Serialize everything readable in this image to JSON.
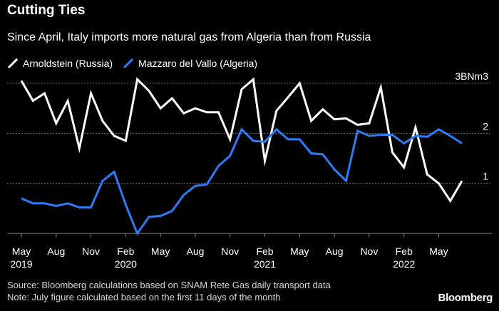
{
  "colors": {
    "russia": "#ffffff",
    "algeria": "#2f7bf5",
    "grid": "#6a6a6a",
    "axis": "#8a8a8a",
    "text": "#ffffff",
    "footnote": "#d7d7d7"
  },
  "chart_data": {
    "type": "line",
    "title": "Cutting Ties",
    "subtitle": "Since April, Italy imports more natural gas from Algeria than from Russia",
    "y_unit_label": "3BNm3",
    "ylim": [
      0,
      3.1
    ],
    "yticks": [
      {
        "value": 1,
        "label": "1"
      },
      {
        "value": 2,
        "label": "2"
      },
      {
        "value": 3,
        "label": "3BNm3"
      }
    ],
    "grid": true,
    "legend_position": "top-left",
    "x_start": "2019-05",
    "x_end": "2022-07",
    "x_ticks": [
      {
        "month": "May",
        "year": "2019",
        "date": "2019-05"
      },
      {
        "month": "Aug",
        "year": "",
        "date": "2019-08"
      },
      {
        "month": "Nov",
        "year": "",
        "date": "2019-11"
      },
      {
        "month": "Feb",
        "year": "2020",
        "date": "2020-02"
      },
      {
        "month": "May",
        "year": "",
        "date": "2020-05"
      },
      {
        "month": "Aug",
        "year": "",
        "date": "2020-08"
      },
      {
        "month": "Nov",
        "year": "",
        "date": "2020-11"
      },
      {
        "month": "Feb",
        "year": "2021",
        "date": "2021-02"
      },
      {
        "month": "May",
        "year": "",
        "date": "2021-05"
      },
      {
        "month": "Aug",
        "year": "",
        "date": "2021-08"
      },
      {
        "month": "Nov",
        "year": "",
        "date": "2021-11"
      },
      {
        "month": "Feb",
        "year": "2022",
        "date": "2022-02"
      },
      {
        "month": "May",
        "year": "",
        "date": "2022-05"
      }
    ],
    "series": [
      {
        "name": "Arnoldstein (Russia)",
        "key": "russia",
        "points": [
          [
            "2019-05-01",
            3.05
          ],
          [
            "2019-06-01",
            2.65
          ],
          [
            "2019-07-01",
            2.8
          ],
          [
            "2019-08-01",
            2.2
          ],
          [
            "2019-09-01",
            2.65
          ],
          [
            "2019-10-01",
            1.7
          ],
          [
            "2019-11-01",
            2.8
          ],
          [
            "2019-12-01",
            2.25
          ],
          [
            "2020-01-01",
            1.95
          ],
          [
            "2020-02-01",
            1.85
          ],
          [
            "2020-03-01",
            3.08
          ],
          [
            "2020-04-01",
            2.85
          ],
          [
            "2020-05-01",
            2.5
          ],
          [
            "2020-06-01",
            2.7
          ],
          [
            "2020-07-01",
            2.4
          ],
          [
            "2020-08-01",
            2.5
          ],
          [
            "2020-09-01",
            2.42
          ],
          [
            "2020-10-01",
            2.42
          ],
          [
            "2020-11-01",
            1.88
          ],
          [
            "2020-12-01",
            2.88
          ],
          [
            "2021-01-01",
            3.08
          ],
          [
            "2021-02-01",
            1.45
          ],
          [
            "2021-03-01",
            2.45
          ],
          [
            "2021-04-01",
            2.72
          ],
          [
            "2021-05-01",
            3.0
          ],
          [
            "2021-06-01",
            2.25
          ],
          [
            "2021-07-01",
            2.48
          ],
          [
            "2021-08-01",
            2.28
          ],
          [
            "2021-09-01",
            2.3
          ],
          [
            "2021-10-01",
            2.17
          ],
          [
            "2021-11-01",
            2.2
          ],
          [
            "2021-12-01",
            2.92
          ],
          [
            "2022-01-01",
            1.62
          ],
          [
            "2022-02-01",
            1.32
          ],
          [
            "2022-03-01",
            2.12
          ],
          [
            "2022-04-01",
            1.18
          ],
          [
            "2022-05-01",
            1.0
          ],
          [
            "2022-06-01",
            0.65
          ],
          [
            "2022-07-01",
            1.05
          ]
        ]
      },
      {
        "name": "Mazzaro del Vallo (Algeria)",
        "key": "algeria",
        "points": [
          [
            "2019-05-01",
            0.7
          ],
          [
            "2019-06-01",
            0.6
          ],
          [
            "2019-07-01",
            0.6
          ],
          [
            "2019-08-01",
            0.55
          ],
          [
            "2019-09-01",
            0.6
          ],
          [
            "2019-10-01",
            0.52
          ],
          [
            "2019-11-01",
            0.52
          ],
          [
            "2019-12-01",
            1.05
          ],
          [
            "2020-01-01",
            1.23
          ],
          [
            "2020-02-01",
            0.57
          ],
          [
            "2020-03-01",
            0.0
          ],
          [
            "2020-04-01",
            0.33
          ],
          [
            "2020-05-01",
            0.35
          ],
          [
            "2020-06-01",
            0.45
          ],
          [
            "2020-07-01",
            0.77
          ],
          [
            "2020-08-01",
            0.95
          ],
          [
            "2020-09-01",
            0.98
          ],
          [
            "2020-10-01",
            1.35
          ],
          [
            "2020-11-01",
            1.55
          ],
          [
            "2020-12-01",
            2.08
          ],
          [
            "2021-01-01",
            1.85
          ],
          [
            "2021-02-01",
            1.83
          ],
          [
            "2021-03-01",
            2.08
          ],
          [
            "2021-04-01",
            1.88
          ],
          [
            "2021-05-01",
            1.88
          ],
          [
            "2021-06-01",
            1.6
          ],
          [
            "2021-07-01",
            1.58
          ],
          [
            "2021-08-01",
            1.28
          ],
          [
            "2021-09-01",
            1.05
          ],
          [
            "2021-10-01",
            2.05
          ],
          [
            "2021-11-01",
            1.95
          ],
          [
            "2021-12-01",
            1.97
          ],
          [
            "2022-01-01",
            1.97
          ],
          [
            "2022-02-01",
            1.8
          ],
          [
            "2022-03-01",
            1.95
          ],
          [
            "2022-04-01",
            1.93
          ],
          [
            "2022-05-01",
            2.08
          ],
          [
            "2022-06-01",
            1.95
          ],
          [
            "2022-07-01",
            1.8
          ]
        ]
      }
    ]
  },
  "footnotes": {
    "source": "Source: Bloomberg calculations based on SNAM Rete Gas daily transport data",
    "note": "Note: July figure calculated based on the first 11 days of the month"
  },
  "brand": "Bloomberg"
}
